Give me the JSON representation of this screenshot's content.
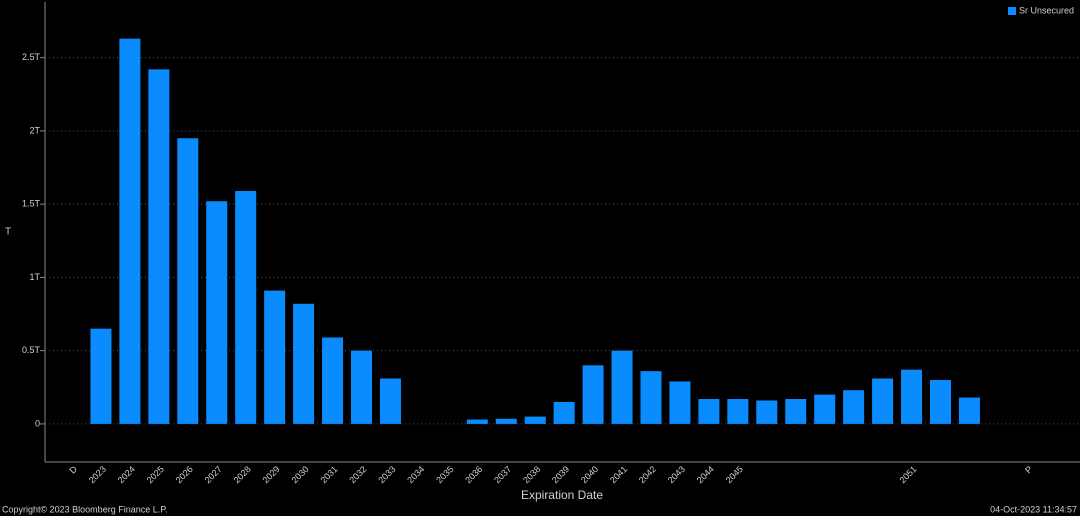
{
  "chart_data": {
    "type": "bar",
    "x_label": "Expiration Date",
    "y_label": "T",
    "categories": [
      "D",
      "2023",
      "2024",
      "2025",
      "2026",
      "2027",
      "2028",
      "2029",
      "2030",
      "2031",
      "2032",
      "2033",
      "2034",
      "2035",
      "2036",
      "2037",
      "2038",
      "2039",
      "2040",
      "2041",
      "2042",
      "2043",
      "2044",
      "2045",
      null,
      null,
      null,
      null,
      null,
      "2051",
      null,
      null,
      null,
      "P"
    ],
    "series": [
      {
        "name": "Sr Unsecured",
        "color": "#0a8cff",
        "values": [
          null,
          0.65,
          2.63,
          2.42,
          1.95,
          1.52,
          1.59,
          0.91,
          0.82,
          0.59,
          0.5,
          0.31,
          0,
          0,
          0.03,
          0.035,
          0.05,
          0.15,
          0.4,
          0.5,
          0.36,
          0.29,
          0.17,
          0.17,
          0.16,
          0.17,
          0.2,
          0.23,
          0.31,
          0.37,
          0.3,
          0.18,
          null,
          null
        ]
      }
    ],
    "ylim": [
      -0.26,
      2.88
    ],
    "yticks": [
      0,
      {
        "value": 0.5,
        "label": "0.5T"
      },
      {
        "value": 1,
        "label": "1T"
      },
      {
        "value": 1.5,
        "label": "1.5T"
      },
      {
        "value": 2,
        "label": "2T"
      },
      {
        "value": 2.5,
        "label": "2.5T"
      }
    ],
    "grid": true,
    "legend": "top-right",
    "footer_left": "Copyright© 2023 Bloomberg Finance L.P.",
    "footer_right": "04-Oct-2023 11:34:57"
  }
}
